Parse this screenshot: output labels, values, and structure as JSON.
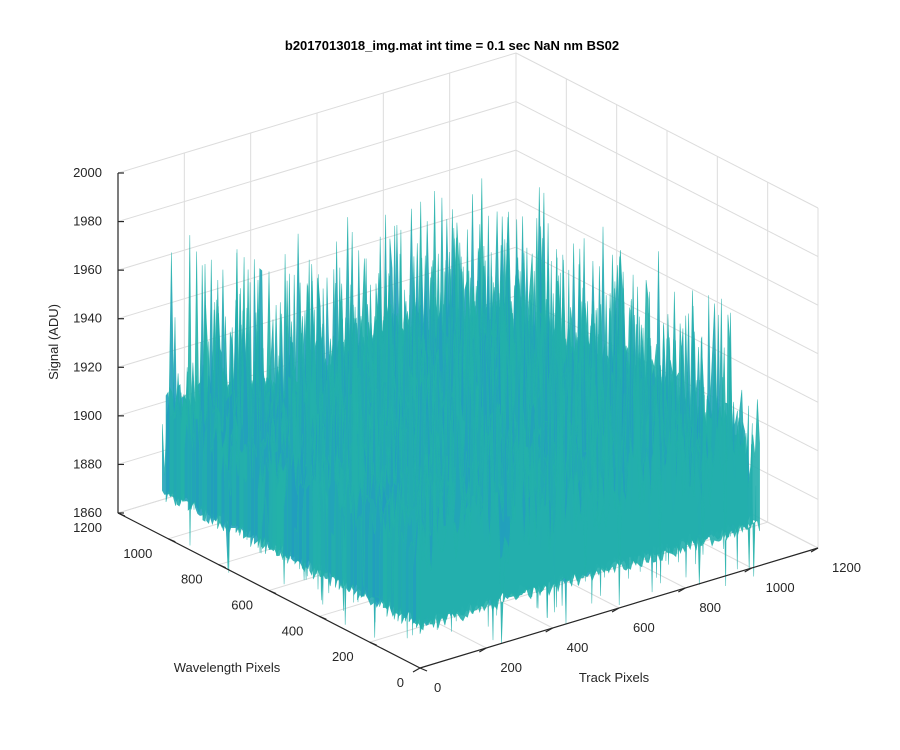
{
  "chart_data": {
    "type": "surface",
    "title": "b2017013018_img.mat int time = 0.1 sec  NaN nm BS02",
    "xlabel": "Track Pixels",
    "ylabel": "Wavelength Pixels",
    "zlabel": "Signal (ADU)",
    "xlim": [
      0,
      1200
    ],
    "ylim": [
      0,
      1200
    ],
    "zlim": [
      1860,
      2000
    ],
    "xticks": [
      "0",
      "200",
      "400",
      "600",
      "800",
      "1000",
      "1200"
    ],
    "yticks": [
      "0",
      "200",
      "400",
      "600",
      "800",
      "1000",
      "1200"
    ],
    "zticks": [
      "1860",
      "1880",
      "1900",
      "1920",
      "1940",
      "1960",
      "1980",
      "2000"
    ],
    "grid": true,
    "colormap": "parula",
    "surface": {
      "x_extent": [
        0,
        1024
      ],
      "y_extent": [
        0,
        1024
      ],
      "mean_signal": 1910,
      "signal_range": [
        1855,
        1995
      ]
    }
  },
  "colors": {
    "low": "#1f7fde",
    "mid": "#23b3a8",
    "high": "#d8ba3c",
    "axis": "#262626",
    "grid": "#dcdcdc"
  }
}
